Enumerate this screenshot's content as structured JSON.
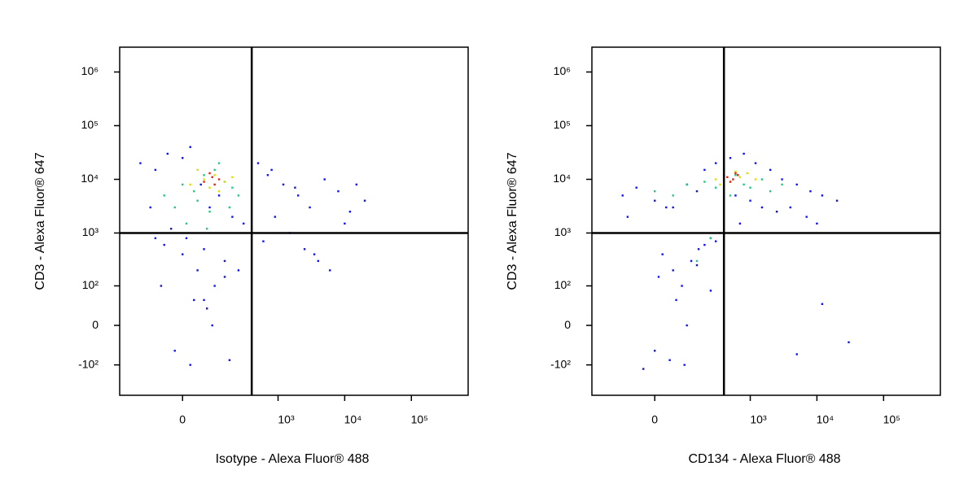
{
  "chart_data": [
    {
      "type": "scatter",
      "xscale": "biexponential",
      "yscale": "biexponential",
      "xlabel": "Isotype - Alexa Fluor® 488",
      "ylabel": "CD3 - Alexa Fluor® 647",
      "xlim": [
        -320,
        710000
      ],
      "ylim": [
        -380,
        2900000
      ],
      "xticks": [
        0,
        {
          "value": 1000,
          "label": "10³"
        },
        {
          "value": 10000,
          "label": "10⁴"
        },
        {
          "value": 100000,
          "label": "10⁵"
        }
      ],
      "yticks": [
        {
          "value": -100,
          "label": "-10²"
        },
        0,
        {
          "value": 100,
          "label": "10²"
        },
        {
          "value": 1000,
          "label": "10³"
        },
        {
          "value": 10000,
          "label": "10⁴"
        },
        {
          "value": 100000,
          "label": "10⁵"
        },
        {
          "value": 1000000,
          "label": "10⁶"
        }
      ],
      "gates": {
        "x": 400,
        "y": 1000
      },
      "series": [
        {
          "color": "#1010ff",
          "x": [
            -150,
            -80,
            -40,
            0,
            20,
            50,
            80,
            120,
            200,
            300,
            -100,
            -30,
            10,
            60,
            150,
            250,
            -60,
            30,
            90,
            180,
            500,
            800,
            1200,
            2000,
            3000,
            5000,
            8000,
            12000,
            20000,
            1500,
            2500,
            4000,
            6000,
            10000,
            700,
            900,
            1800,
            3500,
            15000,
            600,
            -50,
            0,
            40,
            100,
            -20,
            70,
            150,
            -80,
            20,
            60
          ],
          "y": [
            20000,
            15000,
            30000,
            25000,
            40000,
            8000,
            3000,
            5000,
            2000,
            1500,
            3000,
            1200,
            800,
            500,
            300,
            200,
            100,
            50,
            0,
            -80,
            20000,
            15000,
            8000,
            5000,
            3000,
            10000,
            6000,
            2500,
            4000,
            1000,
            500,
            300,
            200,
            1500,
            12000,
            2000,
            7000,
            400,
            8000,
            700,
            600,
            400,
            200,
            100,
            -50,
            30,
            150,
            800,
            -100,
            50
          ]
        },
        {
          "color": "#20c880",
          "x": [
            -50,
            0,
            30,
            60,
            100,
            150,
            200,
            -20,
            40,
            80,
            120,
            250,
            10,
            70,
            180
          ],
          "y": [
            5000,
            8000,
            6000,
            12000,
            15000,
            9000,
            7000,
            3000,
            4000,
            2500,
            20000,
            5000,
            1500,
            1200,
            3000
          ]
        },
        {
          "color": "#d8e000",
          "x": [
            20,
            60,
            100,
            150,
            40,
            80,
            120,
            200
          ],
          "y": [
            8000,
            10000,
            12000,
            9000,
            15000,
            7000,
            6000,
            11000
          ]
        },
        {
          "color": "#e82010",
          "x": [
            60,
            90,
            120,
            80,
            100
          ],
          "y": [
            9000,
            11000,
            10000,
            13000,
            8000
          ]
        }
      ]
    },
    {
      "type": "scatter",
      "xscale": "biexponential",
      "yscale": "biexponential",
      "xlabel": "CD134 - Alexa Fluor® 488",
      "ylabel": "CD3 - Alexa Fluor® 647",
      "xlim": [
        -320,
        710000
      ],
      "ylim": [
        -380,
        2900000
      ],
      "xticks": [
        0,
        {
          "value": 1000,
          "label": "10³"
        },
        {
          "value": 10000,
          "label": "10⁴"
        },
        {
          "value": 100000,
          "label": "10⁵"
        }
      ],
      "yticks": [
        {
          "value": -100,
          "label": "-10²"
        },
        0,
        {
          "value": 100,
          "label": "10²"
        },
        {
          "value": 1000,
          "label": "10³"
        },
        {
          "value": 10000,
          "label": "10⁴"
        },
        {
          "value": 100000,
          "label": "10⁵"
        },
        {
          "value": 1000000,
          "label": "10⁶"
        }
      ],
      "gates": {
        "x": 400,
        "y": 1000
      },
      "series": [
        {
          "color": "#1010ff",
          "x": [
            -100,
            -50,
            0,
            50,
            100,
            200,
            300,
            500,
            800,
            1200,
            2000,
            3000,
            5000,
            8000,
            12000,
            20000,
            -80,
            30,
            150,
            400,
            600,
            1000,
            1500,
            2500,
            4000,
            7000,
            10000,
            250,
            350,
            700,
            20,
            50,
            80,
            120,
            160,
            200,
            300,
            400,
            60,
            100,
            0,
            40,
            -30,
            90,
            250,
            10,
            150,
            5000,
            30000,
            12000
          ],
          "y": [
            5000,
            7000,
            4000,
            3000,
            8000,
            15000,
            20000,
            25000,
            30000,
            20000,
            15000,
            10000,
            8000,
            6000,
            5000,
            4000,
            2000,
            3000,
            6000,
            12000,
            5000,
            4000,
            3000,
            2500,
            3000,
            2000,
            1500,
            800,
            1000,
            1500,
            400,
            200,
            100,
            300,
            500,
            600,
            700,
            900,
            50,
            0,
            -50,
            -80,
            -120,
            -100,
            80,
            150,
            250,
            -60,
            -30,
            40
          ]
        },
        {
          "color": "#20c880",
          "x": [
            0,
            50,
            100,
            200,
            300,
            400,
            600,
            800,
            1000,
            1500,
            2000,
            3000,
            150,
            250,
            500
          ],
          "y": [
            6000,
            5000,
            8000,
            9000,
            7000,
            15000,
            12000,
            8000,
            7000,
            10000,
            6000,
            8000,
            300,
            800,
            5000
          ]
        },
        {
          "color": "#d8e000",
          "x": [
            300,
            400,
            500,
            700,
            900,
            1200,
            350,
            600
          ],
          "y": [
            10000,
            12000,
            9000,
            11000,
            13000,
            10000,
            8000,
            14000
          ]
        },
        {
          "color": "#e82010",
          "x": [
            450,
            550,
            650,
            500,
            600
          ],
          "y": [
            11000,
            10000,
            12000,
            9000,
            13000
          ]
        }
      ]
    }
  ]
}
